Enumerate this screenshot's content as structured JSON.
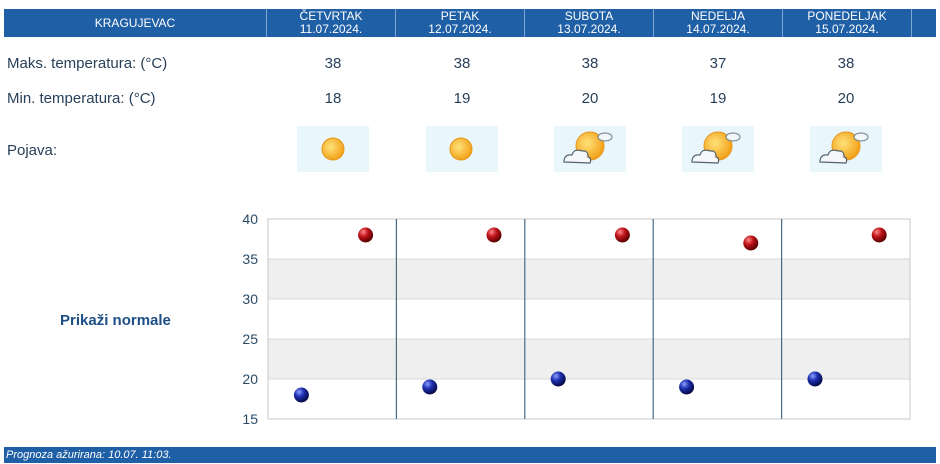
{
  "header": {
    "city": "KRAGUJEVAC",
    "days": [
      {
        "name": "ČETVRTAK",
        "date": "11.07.2024."
      },
      {
        "name": "PETAK",
        "date": "12.07.2024."
      },
      {
        "name": "SUBOTA",
        "date": "13.07.2024."
      },
      {
        "name": "NEDELJA",
        "date": "14.07.2024."
      },
      {
        "name": "PONEDELJAK",
        "date": "15.07.2024."
      }
    ]
  },
  "rows": {
    "max_label": "Maks. temperatura: (°C)",
    "min_label": "Min. temperatura: (°C)",
    "pojava_label": "Pojava:",
    "max_values": [
      "38",
      "38",
      "38",
      "37",
      "38"
    ],
    "min_values": [
      "18",
      "19",
      "20",
      "19",
      "20"
    ],
    "icons": [
      "sun-icon",
      "sun-icon",
      "sun-cloud-icon",
      "sun-cloud-icon",
      "sun-cloud-icon"
    ]
  },
  "normale_link": "Prikaži normale",
  "footer": "Prognoza ažurirana:  10.07. 11:03.",
  "colors": {
    "header": "#1f5fa6",
    "max_dot": "#c0141a",
    "min_dot": "#1d2fb0"
  },
  "chart_data": {
    "type": "scatter",
    "categories": [
      "11.07.2024.",
      "12.07.2024.",
      "13.07.2024.",
      "14.07.2024.",
      "15.07.2024."
    ],
    "series": [
      {
        "values": [
          38,
          38,
          38,
          37,
          38
        ]
      },
      {
        "values": [
          18,
          19,
          20,
          19,
          20
        ]
      }
    ],
    "yticks": [
      "15",
      "20",
      "25",
      "30",
      "35",
      "40"
    ],
    "ylim": [
      15,
      40
    ],
    "grid": true
  }
}
